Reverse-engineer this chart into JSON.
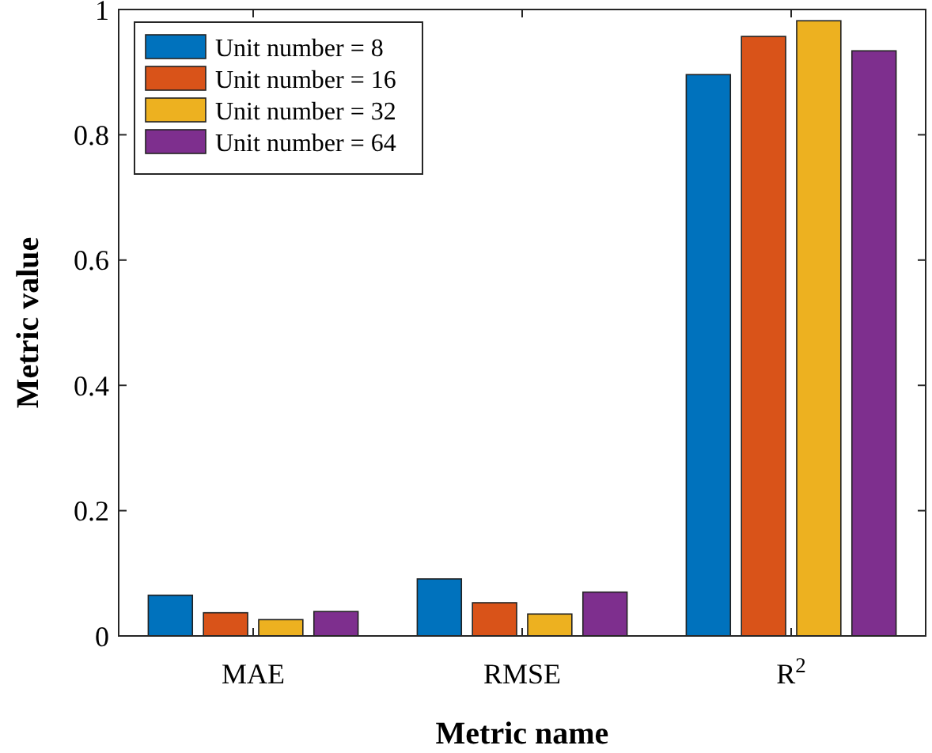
{
  "chart_data": {
    "type": "bar",
    "xlabel": "Metric name",
    "ylabel": "Metric value",
    "categories": [
      "MAE",
      "RMSE",
      "R$^{2}$"
    ],
    "series": [
      {
        "name": "Unit number = 8",
        "color": "#0072bd",
        "values": [
          0.065,
          0.091,
          0.896
        ]
      },
      {
        "name": "Unit number = 16",
        "color": "#d95319",
        "values": [
          0.037,
          0.053,
          0.957
        ]
      },
      {
        "name": "Unit number = 32",
        "color": "#edb120",
        "values": [
          0.026,
          0.035,
          0.982
        ]
      },
      {
        "name": "Unit number = 64",
        "color": "#7e2f8e",
        "values": [
          0.039,
          0.07,
          0.934
        ]
      }
    ],
    "ylim": [
      0,
      1
    ],
    "yticks": [
      0,
      0.2,
      0.4,
      0.6,
      0.8,
      1
    ],
    "legend": "top left",
    "grid": false
  }
}
